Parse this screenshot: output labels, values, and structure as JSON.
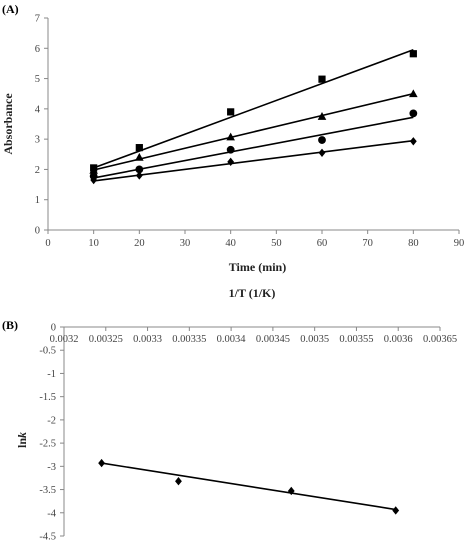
{
  "chart_data": [
    {
      "panel_label": "(A)",
      "type": "scatter",
      "xlabel": "Time (min)",
      "ylabel": "Absorbance",
      "xlim": [
        0,
        90
      ],
      "ylim": [
        0,
        7
      ],
      "xticks": [
        0,
        10,
        20,
        30,
        40,
        50,
        60,
        70,
        80,
        90
      ],
      "yticks": [
        0,
        1,
        2,
        3,
        4,
        5,
        6,
        7
      ],
      "grid": false,
      "series": [
        {
          "marker": "square",
          "x": [
            10,
            20,
            40,
            60,
            80
          ],
          "y": [
            2.05,
            2.72,
            3.9,
            4.98,
            5.82
          ],
          "fit": [
            [
              10,
              2.05
            ],
            [
              80,
              5.95
            ]
          ]
        },
        {
          "marker": "triangle",
          "x": [
            10,
            20,
            40,
            60,
            80
          ],
          "y": [
            1.97,
            2.4,
            3.07,
            3.75,
            4.5
          ],
          "fit": [
            [
              10,
              1.98
            ],
            [
              80,
              4.5
            ]
          ]
        },
        {
          "marker": "circle",
          "x": [
            10,
            20,
            40,
            60,
            80
          ],
          "y": [
            1.78,
            2.0,
            2.65,
            2.97,
            3.85
          ],
          "fit": [
            [
              10,
              1.72
            ],
            [
              80,
              3.72
            ]
          ]
        },
        {
          "marker": "diamond",
          "x": [
            10,
            20,
            40,
            60,
            80
          ],
          "y": [
            1.65,
            1.8,
            2.25,
            2.55,
            2.93
          ],
          "fit": [
            [
              10,
              1.62
            ],
            [
              80,
              2.95
            ]
          ]
        }
      ]
    },
    {
      "panel_label": "(B)",
      "type": "scatter",
      "xlabel": "1/T (1/K)",
      "ylabel_prefix": "ln",
      "ylabel_var": "k",
      "xlim": [
        0.0032,
        0.00365
      ],
      "ylim": [
        -4.5,
        0
      ],
      "xticks": [
        "0.0032",
        "0.00325",
        "0.0033",
        "0.00335",
        "0.0034",
        "0.00345",
        "0.0035",
        "0.00355",
        "0.0036",
        "0.00365"
      ],
      "yticks": [
        "0",
        "-0.5",
        "-1",
        "-1.5",
        "-2",
        "-2.5",
        "-3",
        "-3.5",
        "-4",
        "-4.5"
      ],
      "grid": false,
      "series": [
        {
          "marker": "diamond",
          "x": [
            0.003245,
            0.003337,
            0.003472,
            0.003597
          ],
          "y": [
            -2.93,
            -3.32,
            -3.53,
            -3.95
          ],
          "fit": [
            [
              0.003245,
              -2.93
            ],
            [
              0.003597,
              -3.93
            ]
          ]
        }
      ]
    }
  ]
}
